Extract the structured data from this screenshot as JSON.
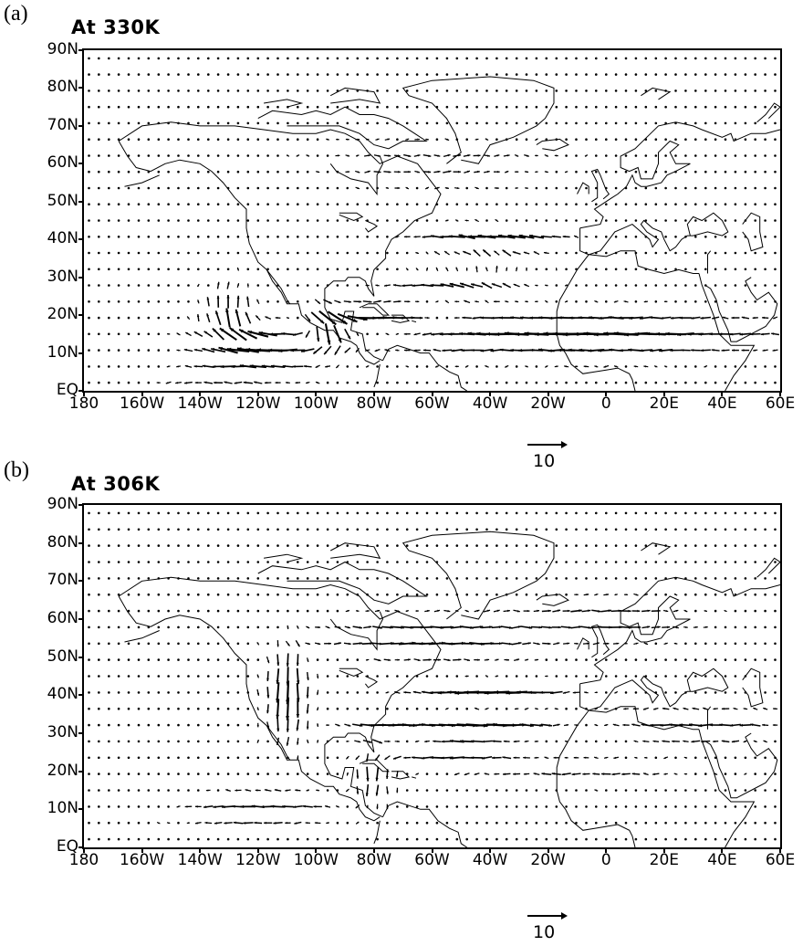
{
  "panels": [
    {
      "letter": "(a)",
      "title": "At 330K",
      "reference_vector": {
        "magnitude": 10,
        "label": "10"
      }
    },
    {
      "letter": "(b)",
      "title": "At 306K",
      "reference_vector": {
        "magnitude": 10,
        "label": "10"
      }
    }
  ],
  "axes": {
    "lat_ticks": [
      "90N",
      "80N",
      "70N",
      "60N",
      "50N",
      "40N",
      "30N",
      "20N",
      "10N",
      "EQ"
    ],
    "lon_ticks": [
      "180",
      "160W",
      "140W",
      "120W",
      "100W",
      "80W",
      "60W",
      "40W",
      "20W",
      "0",
      "20E",
      "40E",
      "60E"
    ],
    "lon_range": [
      -180,
      60
    ],
    "lat_range": [
      0,
      90
    ]
  },
  "map_type": "wind vector field over coastlines",
  "colors": {
    "ink": "#000000",
    "background": "#ffffff"
  }
}
